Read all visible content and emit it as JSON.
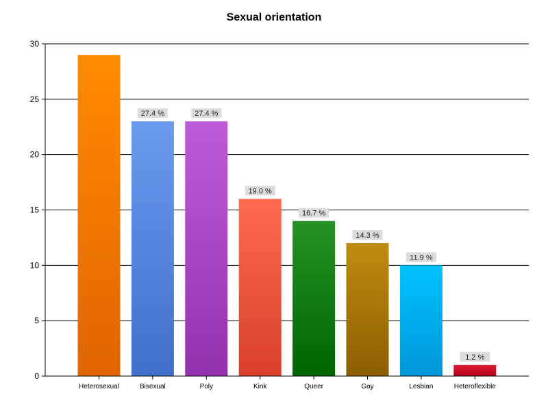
{
  "chart_data": {
    "type": "bar",
    "title": "Sexual orientation",
    "xlabel": "",
    "ylabel": "",
    "ylim": [
      0,
      30
    ],
    "yticks": [
      0,
      5,
      10,
      15,
      20,
      25,
      30
    ],
    "grid": true,
    "categories": [
      "Heterosexual",
      "Bisexual",
      "Poly",
      "Kink",
      "Queer",
      "Gay",
      "Lesbian",
      "Heteroflexible"
    ],
    "values": [
      29,
      23,
      23,
      16,
      14,
      12,
      10,
      1
    ],
    "data_labels": [
      "",
      "27.4 %",
      "27.4 %",
      "19.0 %",
      "16.7 %",
      "14.3 %",
      "11.9 %",
      "1.2 %"
    ],
    "colors": [
      [
        "#ff8c00",
        "#de6500"
      ],
      [
        "#6b9bee",
        "#3f6fc8"
      ],
      [
        "#bd5bda",
        "#9230ae"
      ],
      [
        "#ff6b4f",
        "#d8402a"
      ],
      [
        "#269226",
        "#006400"
      ],
      [
        "#c08c10",
        "#8b5e00"
      ],
      [
        "#00c3ff",
        "#0096d8"
      ],
      [
        "#e01c34",
        "#b5001a"
      ]
    ]
  }
}
